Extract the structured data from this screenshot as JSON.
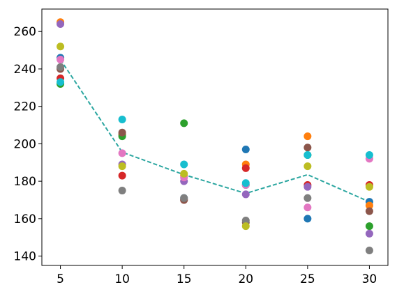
{
  "chart_data": {
    "type": "scatter",
    "title": "",
    "xlabel": "",
    "ylabel": "",
    "xlim": [
      3.5,
      31.5
    ],
    "ylim": [
      135,
      272
    ],
    "xticks": [
      5,
      10,
      15,
      20,
      25,
      30
    ],
    "yticks": [
      140,
      160,
      180,
      200,
      220,
      240,
      260
    ],
    "grid": false,
    "x": [
      5,
      10,
      15,
      20,
      25,
      30
    ],
    "series": [
      {
        "color": "#1f77b4",
        "values": [
          246,
          205,
          171,
          197,
          160,
          169
        ]
      },
      {
        "color": "#ff7f0e",
        "values": [
          265,
          205,
          183,
          189,
          204,
          167
        ]
      },
      {
        "color": "#2ca02c",
        "values": [
          232,
          204,
          211,
          178,
          194,
          156
        ]
      },
      {
        "color": "#d62728",
        "values": [
          235,
          183,
          170,
          187,
          178,
          178
        ]
      },
      {
        "color": "#9467bd",
        "values": [
          264,
          189,
          180,
          173,
          177,
          152
        ]
      },
      {
        "color": "#8c564b",
        "values": [
          240,
          206,
          170,
          158,
          198,
          164
        ]
      },
      {
        "color": "#e377c2",
        "values": [
          245,
          195,
          182,
          178,
          166,
          192
        ]
      },
      {
        "color": "#7f7f7f",
        "values": [
          241,
          175,
          171,
          159,
          171,
          143
        ]
      },
      {
        "color": "#bcbd22",
        "values": [
          252,
          188,
          184,
          156,
          188,
          177
        ]
      },
      {
        "color": "#17becf",
        "values": [
          233,
          213,
          189,
          179,
          194,
          194
        ]
      }
    ],
    "trend_line": {
      "color": "#2ba6a0",
      "style": "dashed",
      "values": [
        245,
        195.5,
        183.5,
        173.5,
        183.5,
        169
      ]
    }
  }
}
